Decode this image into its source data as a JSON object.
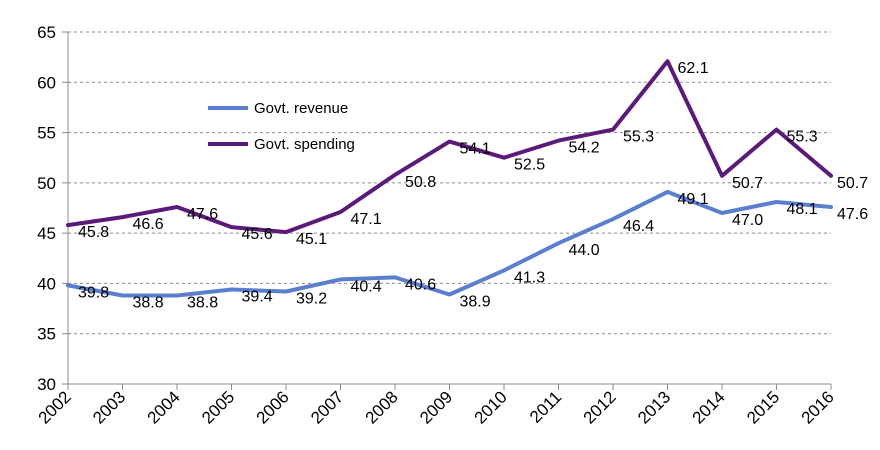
{
  "chart_data": {
    "type": "line",
    "title": "",
    "xlabel": "",
    "ylabel": "",
    "ylim": [
      30,
      65
    ],
    "yticks": [
      30,
      35,
      40,
      45,
      50,
      55,
      60,
      65
    ],
    "categories": [
      "2002",
      "2003",
      "2004",
      "2005",
      "2006",
      "2007",
      "2008",
      "2009",
      "2010",
      "2011",
      "2012",
      "2013",
      "2014",
      "2015",
      "2016"
    ],
    "grid": true,
    "legend_position": "upper-left inside plot",
    "series": [
      {
        "name": "Govt. revenue",
        "color": "#5b7fcf",
        "values": [
          39.8,
          38.8,
          38.8,
          39.4,
          39.2,
          40.4,
          40.6,
          38.9,
          41.3,
          44.0,
          46.4,
          49.1,
          47.0,
          48.1,
          47.6
        ],
        "labels": [
          "39.8",
          "38.8",
          "38.8",
          "39.4",
          "39.2",
          "40.4",
          "40.6",
          "38.9",
          "41.3",
          "44.0",
          "46.4",
          "49.1",
          "47.0",
          "48.1",
          "47.6"
        ]
      },
      {
        "name": "Govt. spending",
        "color": "#5b1a7a",
        "values": [
          45.8,
          46.6,
          47.6,
          45.6,
          45.1,
          47.1,
          50.8,
          54.1,
          52.5,
          54.2,
          55.3,
          62.1,
          50.7,
          55.3,
          50.7
        ],
        "labels": [
          "45.8",
          "46.6",
          "47.6",
          "45.6",
          "45.1",
          "47.1",
          "50.8",
          "54.1",
          "52.5",
          "54.2",
          "55.3",
          "62.1",
          "50.7",
          "55.3",
          "50.7"
        ]
      }
    ]
  }
}
